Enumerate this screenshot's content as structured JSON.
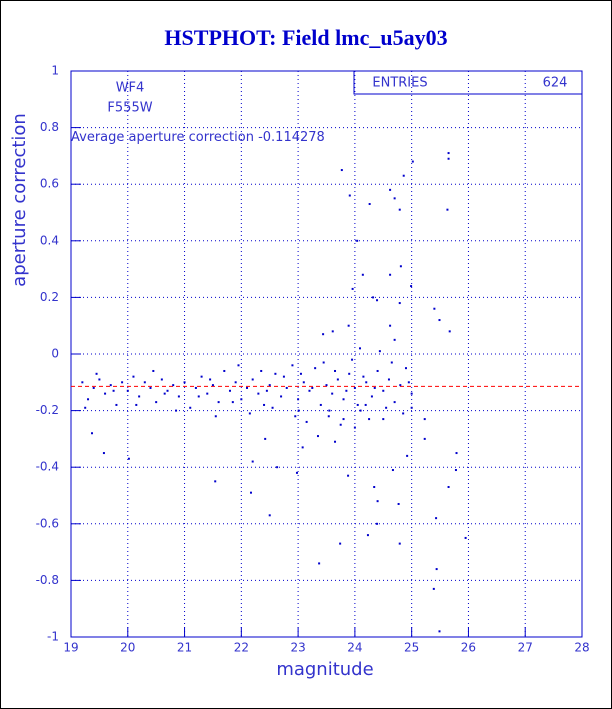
{
  "chart_data": {
    "type": "scatter",
    "title": "HSTPHOT: Field lmc_u5ay03",
    "x_label": "magnitude",
    "y_label": "aperture correction",
    "labels": [
      "WF4",
      "F555W"
    ],
    "stats": {
      "label": "ENTRIES",
      "value": 624
    },
    "annotation": {
      "label": "Average aperture correction",
      "value": -0.114278,
      "color": "#ff0000"
    },
    "xlim": [
      19,
      28
    ],
    "xticks": [
      19,
      20,
      21,
      22,
      23,
      24,
      25,
      26,
      27,
      28
    ],
    "ylim": [
      -1,
      1
    ],
    "yticks": [
      -1,
      -0.8,
      -0.6,
      -0.4,
      -0.2,
      0,
      0.2,
      0.4,
      0.6,
      0.8,
      1
    ],
    "grid": true,
    "color": "#0000cc",
    "x": [
      25.65,
      25.65,
      25.02,
      23.77,
      24.86,
      23.91,
      24.62,
      24.7,
      24.79,
      24.26,
      25.63,
      24.04,
      24.81,
      24.14,
      24.62,
      24.32,
      24.39,
      24.79,
      24.99,
      23.96,
      25.4,
      25.49,
      25.67,
      23.89,
      23.61,
      23.44,
      24.62,
      24.7,
      24.09,
      24.44,
      22.2,
      22.63,
      22.98,
      21.54,
      22.17,
      22.5,
      23.37,
      23.74,
      24.23,
      24.39,
      23.88,
      24.34,
      24.4,
      24.77,
      24.79,
      25.43,
      25.44,
      25.39,
      25.49,
      25.95,
      25.78,
      25.79,
      25.65,
      25.23,
      25.23,
      24.92,
      24.67,
      19.58,
      20.02,
      19.37,
      23.01,
      23.08,
      22.42,
      23.35,
      23.65,
      23.54,
      23.8,
      24.0,
      24.5,
      24.19,
      25.0,
      19.2,
      19.3,
      19.4,
      19.5,
      19.6,
      19.7,
      19.8,
      19.9,
      20.0,
      20.1,
      20.2,
      20.3,
      20.4,
      20.5,
      20.6,
      20.7,
      20.8,
      20.9,
      21.0,
      21.1,
      21.2,
      21.3,
      21.4,
      21.5,
      21.6,
      21.7,
      21.8,
      21.9,
      22.0,
      22.1,
      22.2,
      22.3,
      22.4,
      22.5,
      22.6,
      22.7,
      22.8,
      22.9,
      23.0,
      23.1,
      23.2,
      23.3,
      23.4,
      23.5,
      23.6,
      23.7,
      23.8,
      23.9,
      24.0,
      24.1,
      24.2,
      24.3,
      24.4,
      24.5,
      24.6,
      24.7,
      24.8,
      24.9,
      25.0,
      19.25,
      19.45,
      19.75,
      20.15,
      20.45,
      20.85,
      21.25,
      21.55,
      21.85,
      22.15,
      22.35,
      22.55,
      22.75,
      22.95,
      23.05,
      23.15,
      23.25,
      23.45,
      23.55,
      23.65,
      23.75,
      23.85,
      23.95,
      24.05,
      24.15,
      24.25,
      24.35,
      24.55,
      24.65,
      24.85,
      24.95,
      21.95,
      20.65,
      21.45,
      22.45
    ],
    "values": [
      0.69,
      0.71,
      0.68,
      0.65,
      0.63,
      0.56,
      0.58,
      0.55,
      0.51,
      0.53,
      0.51,
      0.4,
      0.31,
      0.28,
      0.28,
      0.2,
      0.19,
      0.18,
      0.24,
      0.23,
      0.16,
      0.12,
      0.08,
      0.1,
      0.08,
      0.07,
      0.1,
      0.05,
      0.02,
      0.01,
      -0.38,
      -0.4,
      -0.42,
      -0.45,
      -0.49,
      -0.57,
      -0.74,
      -0.67,
      -0.64,
      -0.6,
      -0.43,
      -0.47,
      -0.52,
      -0.53,
      -0.67,
      -0.58,
      -0.76,
      -0.83,
      -0.98,
      -0.65,
      -0.41,
      -0.35,
      -0.47,
      -0.23,
      -0.3,
      -0.36,
      -0.41,
      -0.35,
      -0.37,
      -0.28,
      -0.2,
      -0.33,
      -0.3,
      -0.29,
      -0.31,
      -0.22,
      -0.23,
      -0.26,
      -0.23,
      -0.18,
      -0.19,
      -0.1,
      -0.16,
      -0.12,
      -0.09,
      -0.14,
      -0.11,
      -0.18,
      -0.1,
      -0.13,
      -0.08,
      -0.15,
      -0.1,
      -0.12,
      -0.17,
      -0.09,
      -0.13,
      -0.11,
      -0.15,
      -0.1,
      -0.19,
      -0.12,
      -0.08,
      -0.14,
      -0.11,
      -0.17,
      -0.06,
      -0.13,
      -0.1,
      -0.16,
      -0.12,
      -0.09,
      -0.14,
      -0.18,
      -0.11,
      -0.07,
      -0.15,
      -0.12,
      -0.04,
      -0.16,
      -0.1,
      -0.13,
      -0.05,
      -0.18,
      -0.11,
      -0.14,
      -0.09,
      -0.16,
      -0.07,
      -0.12,
      -0.2,
      -0.1,
      -0.15,
      -0.06,
      -0.13,
      -0.09,
      -0.17,
      -0.11,
      -0.05,
      -0.14,
      -0.19,
      -0.07,
      -0.13,
      -0.18,
      -0.06,
      -0.2,
      -0.15,
      -0.22,
      -0.17,
      -0.21,
      -0.06,
      -0.19,
      -0.08,
      -0.22,
      -0.07,
      -0.24,
      -0.12,
      -0.03,
      -0.2,
      -0.06,
      -0.25,
      -0.13,
      -0.02,
      -0.18,
      -0.08,
      -0.23,
      -0.12,
      -0.19,
      -0.03,
      -0.21,
      -0.1,
      -0.04,
      -0.14,
      -0.09,
      -0.13
    ]
  }
}
